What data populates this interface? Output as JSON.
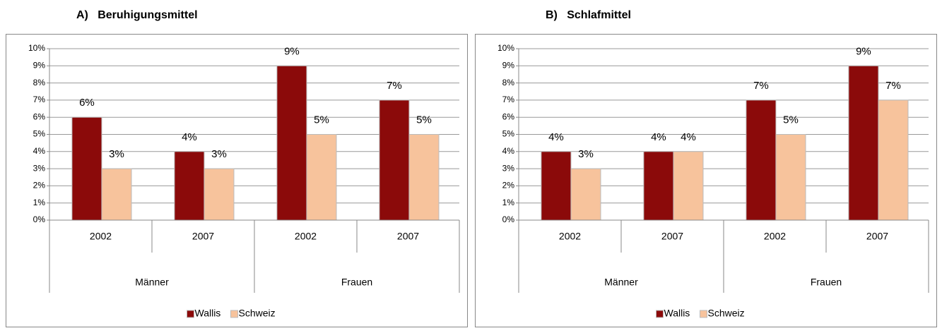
{
  "chart_data": [
    {
      "type": "bar",
      "title": "A)   Beruhigungsmittel",
      "categories": [
        "2002",
        "2007",
        "2002",
        "2007"
      ],
      "groups": [
        "Männer",
        "Frauen"
      ],
      "series": [
        {
          "name": "Wallis",
          "color": "#8b0a0a",
          "values": [
            6,
            4,
            9,
            7
          ],
          "value_labels": [
            "6%",
            "4%",
            "9%",
            "7%"
          ]
        },
        {
          "name": "Schweiz",
          "color": "#f7c39c",
          "values": [
            3,
            3,
            5,
            5
          ],
          "value_labels": [
            "3%",
            "3%",
            "5%",
            "5%"
          ]
        }
      ],
      "ylim": [
        0,
        10
      ],
      "yticks": [
        {
          "value": 0,
          "label": "0%"
        },
        {
          "value": 1,
          "label": "1%"
        },
        {
          "value": 2,
          "label": "2%"
        },
        {
          "value": 3,
          "label": "3%"
        },
        {
          "value": 4,
          "label": "4%"
        },
        {
          "value": 5,
          "label": "5%"
        },
        {
          "value": 6,
          "label": "6%"
        },
        {
          "value": 7,
          "label": "7%"
        },
        {
          "value": 8,
          "label": "8%"
        },
        {
          "value": 9,
          "label": "9%"
        },
        {
          "value": 10,
          "label": "10%"
        }
      ],
      "grid": true,
      "legend": "bottom"
    },
    {
      "type": "bar",
      "title": "B)   Schlafmittel",
      "categories": [
        "2002",
        "2007",
        "2002",
        "2007"
      ],
      "groups": [
        "Männer",
        "Frauen"
      ],
      "series": [
        {
          "name": "Wallis",
          "color": "#8b0a0a",
          "values": [
            4,
            4,
            7,
            9
          ],
          "value_labels": [
            "4%",
            "4%",
            "7%",
            "9%"
          ]
        },
        {
          "name": "Schweiz",
          "color": "#f7c39c",
          "values": [
            3,
            4,
            5,
            7
          ],
          "value_labels": [
            "3%",
            "4%",
            "5%",
            "7%"
          ]
        }
      ],
      "ylim": [
        0,
        10
      ],
      "yticks": [
        {
          "value": 0,
          "label": "0%"
        },
        {
          "value": 1,
          "label": "1%"
        },
        {
          "value": 2,
          "label": "2%"
        },
        {
          "value": 3,
          "label": "3%"
        },
        {
          "value": 4,
          "label": "4%"
        },
        {
          "value": 5,
          "label": "5%"
        },
        {
          "value": 6,
          "label": "6%"
        },
        {
          "value": 7,
          "label": "7%"
        },
        {
          "value": 8,
          "label": "8%"
        },
        {
          "value": 9,
          "label": "9%"
        },
        {
          "value": 10,
          "label": "10%"
        }
      ],
      "grid": true,
      "legend": "bottom"
    }
  ]
}
